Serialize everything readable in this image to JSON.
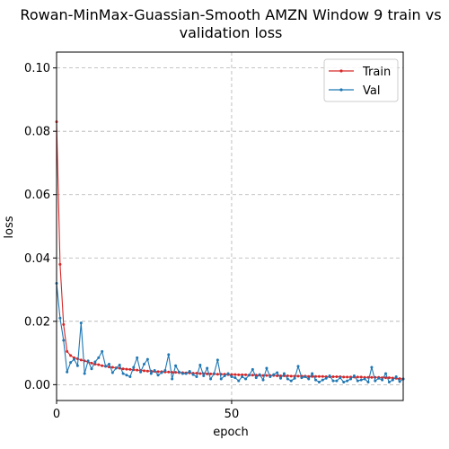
{
  "chart_data": {
    "type": "line",
    "title_lines": [
      "Rowan-MinMax-Guassian-Smooth AMZN Window 9 train vs",
      "validation loss"
    ],
    "xlabel": "epoch",
    "ylabel": "loss",
    "xlim": [
      0,
      99
    ],
    "ylim": [
      -0.005,
      0.105
    ],
    "xticks": [
      0,
      50
    ],
    "yticks": [
      0.0,
      0.02,
      0.04,
      0.06,
      0.08,
      0.1
    ],
    "ytick_labels": [
      "0.00",
      "0.02",
      "0.04",
      "0.06",
      "0.08",
      "0.10"
    ],
    "grid": true,
    "legend_position": "top-right",
    "series": [
      {
        "name": "Train",
        "color": "#d62728",
        "values": [
          0.083,
          0.038,
          0.019,
          0.0105,
          0.0092,
          0.0085,
          0.0082,
          0.0078,
          0.0075,
          0.0072,
          0.0068,
          0.0065,
          0.0063,
          0.006,
          0.0058,
          0.0056,
          0.0055,
          0.0053,
          0.0052,
          0.005,
          0.0049,
          0.0048,
          0.0047,
          0.0046,
          0.0045,
          0.0044,
          0.0043,
          0.0043,
          0.0042,
          0.0041,
          0.0041,
          0.004,
          0.004,
          0.0039,
          0.0039,
          0.0038,
          0.0038,
          0.0037,
          0.0037,
          0.0036,
          0.0036,
          0.0035,
          0.0035,
          0.0034,
          0.0034,
          0.0034,
          0.0033,
          0.0033,
          0.0033,
          0.0032,
          0.0032,
          0.0032,
          0.0031,
          0.0031,
          0.0031,
          0.003,
          0.003,
          0.003,
          0.003,
          0.0029,
          0.0029,
          0.0029,
          0.0029,
          0.0028,
          0.0028,
          0.0028,
          0.0028,
          0.0027,
          0.0027,
          0.0027,
          0.0027,
          0.0027,
          0.0026,
          0.0026,
          0.0026,
          0.0026,
          0.0026,
          0.0025,
          0.0025,
          0.0025,
          0.0025,
          0.0025,
          0.0024,
          0.0024,
          0.0024,
          0.0024,
          0.0024,
          0.0024,
          0.0023,
          0.0023,
          0.0023,
          0.0023,
          0.0023,
          0.0022,
          0.0022,
          0.0022,
          0.0021,
          0.002,
          0.0019,
          0.0018
        ]
      },
      {
        "name": "Val",
        "color": "#1f77b4",
        "values": [
          0.032,
          0.021,
          0.014,
          0.004,
          0.007,
          0.008,
          0.006,
          0.0195,
          0.0035,
          0.0075,
          0.005,
          0.0072,
          0.0085,
          0.0105,
          0.0058,
          0.0065,
          0.0038,
          0.0052,
          0.0062,
          0.0035,
          0.003,
          0.0025,
          0.0055,
          0.0085,
          0.004,
          0.0065,
          0.008,
          0.0035,
          0.0045,
          0.003,
          0.0038,
          0.0045,
          0.0095,
          0.0018,
          0.006,
          0.004,
          0.0035,
          0.0035,
          0.0042,
          0.0032,
          0.0025,
          0.0062,
          0.0028,
          0.0052,
          0.0018,
          0.0035,
          0.0078,
          0.0018,
          0.0028,
          0.0035,
          0.0025,
          0.0022,
          0.0012,
          0.0025,
          0.0018,
          0.003,
          0.0048,
          0.0022,
          0.0032,
          0.0015,
          0.0052,
          0.0025,
          0.0032,
          0.0038,
          0.002,
          0.0035,
          0.0018,
          0.0012,
          0.002,
          0.0058,
          0.0022,
          0.0025,
          0.0018,
          0.0035,
          0.0015,
          0.0008,
          0.0015,
          0.002,
          0.0028,
          0.0012,
          0.0012,
          0.0022,
          0.0008,
          0.0012,
          0.0018,
          0.0028,
          0.0012,
          0.0015,
          0.0018,
          0.0008,
          0.0055,
          0.0012,
          0.002,
          0.0015,
          0.0035,
          0.0008,
          0.0015,
          0.0025,
          0.001,
          0.0018
        ]
      }
    ]
  }
}
